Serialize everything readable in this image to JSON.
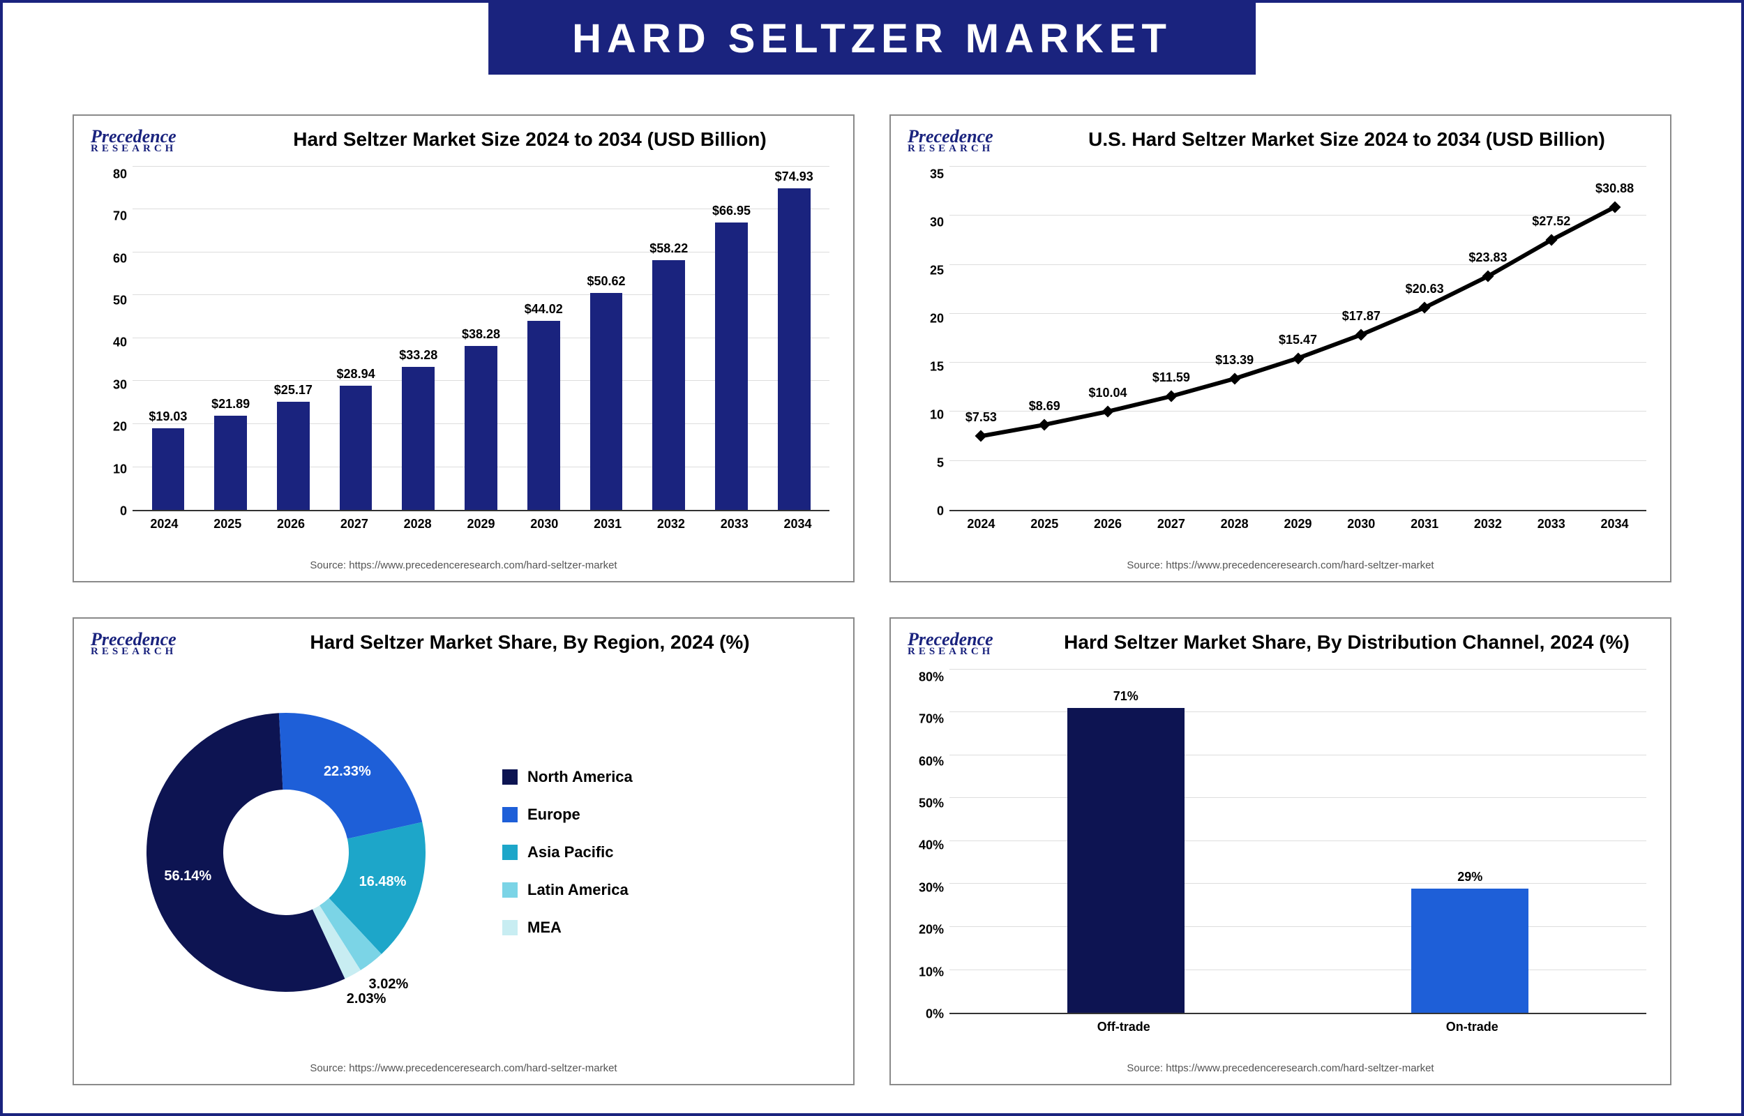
{
  "page_title": "HARD SELTZER MARKET",
  "logo": {
    "line1": "Precedence",
    "line2": "RESEARCH"
  },
  "colors": {
    "navy": "#1a237e",
    "blue": "#1e5fd8",
    "midblue": "#2d6fe0",
    "cyan": "#1da6c9",
    "lightcyan": "#7bd4e6",
    "paleteal": "#b9e8ef",
    "grid": "#dddddd",
    "axis": "#333333",
    "text": "#000000",
    "source_text": "#555555"
  },
  "source_line": "Source: https://www.precedenceresearch.com/hard-seltzer-market",
  "chart1": {
    "type": "bar",
    "title": "Hard Seltzer Market Size 2024 to 2034 (USD Billion)",
    "categories": [
      "2024",
      "2025",
      "2026",
      "2027",
      "2028",
      "2029",
      "2030",
      "2031",
      "2032",
      "2033",
      "2034"
    ],
    "values": [
      19.03,
      21.89,
      25.17,
      28.94,
      33.28,
      38.28,
      44.02,
      50.62,
      58.22,
      66.95,
      74.93
    ],
    "value_labels": [
      "$19.03",
      "$21.89",
      "$25.17",
      "$28.94",
      "$33.28",
      "$38.28",
      "$44.02",
      "$50.62",
      "$58.22",
      "$66.95",
      "$74.93"
    ],
    "ylim": [
      0,
      80
    ],
    "ytick_step": 10,
    "bar_color": "#1a237e",
    "label_fontsize": 18
  },
  "chart2": {
    "type": "line",
    "title": "U.S. Hard Seltzer Market Size 2024 to 2034 (USD Billion)",
    "categories": [
      "2024",
      "2025",
      "2026",
      "2027",
      "2028",
      "2029",
      "2030",
      "2031",
      "2032",
      "2033",
      "2034"
    ],
    "values": [
      7.53,
      8.69,
      10.04,
      11.59,
      13.39,
      15.47,
      17.87,
      20.63,
      23.83,
      27.52,
      30.88
    ],
    "value_labels": [
      "$7.53",
      "$8.69",
      "$10.04",
      "$11.59",
      "$13.39",
      "$15.47",
      "$17.87",
      "$20.63",
      "$23.83",
      "$27.52",
      "$30.88"
    ],
    "ylim": [
      0,
      35
    ],
    "ytick_step": 5,
    "line_color": "#000000",
    "marker_color": "#000000",
    "marker_size": 6,
    "line_width": 3,
    "label_fontsize": 18
  },
  "chart3": {
    "type": "donut",
    "title": "Hard Seltzer Market Share, By Region, 2024 (%)",
    "slices": [
      {
        "label": "North America",
        "value": 56.14,
        "value_label": "56.14%",
        "color": "#0d1452"
      },
      {
        "label": "Europe",
        "value": 22.33,
        "value_label": "22.33%",
        "color": "#1e5fd8"
      },
      {
        "label": "Asia Pacific",
        "value": 16.48,
        "value_label": "16.48%",
        "color": "#1da6c9"
      },
      {
        "label": "Latin America",
        "value": 3.02,
        "value_label": "3.02%",
        "color": "#7bd4e6"
      },
      {
        "label": "MEA",
        "value": 2.03,
        "value_label": "2.03%",
        "color": "#c8edf2"
      }
    ],
    "inner_radius_pct": 45,
    "start_angle_deg": 65,
    "label_fontsize": 20
  },
  "chart4": {
    "type": "bar",
    "title": "Hard Seltzer Market  Share, By Distribution Channel, 2024 (%)",
    "categories": [
      "Off-trade",
      "On-trade"
    ],
    "values": [
      71,
      29
    ],
    "value_labels": [
      "71%",
      "29%"
    ],
    "bar_colors": [
      "#0d1452",
      "#1e5fd8"
    ],
    "ylim": [
      0,
      80
    ],
    "ytick_step": 10,
    "bar_width_pct": 34,
    "label_fontsize": 20
  }
}
